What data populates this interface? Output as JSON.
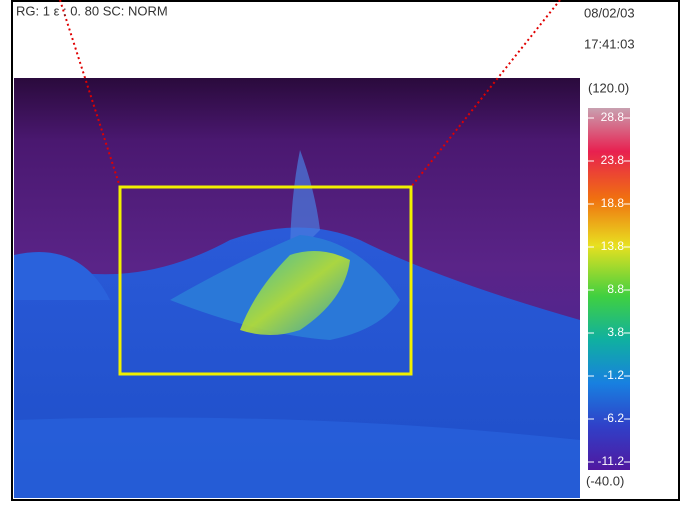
{
  "header": {
    "status": "RG: 1 ε : 0. 80 SC: NORM",
    "date": "08/02/03",
    "time": "17:41:03"
  },
  "scale": {
    "max": "(120.0)",
    "ticks": [
      "28.8",
      "23.8",
      "18.8",
      "13.8",
      "8.8",
      "3.8",
      "-1.2",
      "-6.2",
      "-11.2"
    ],
    "min": "(-40.0)"
  }
}
